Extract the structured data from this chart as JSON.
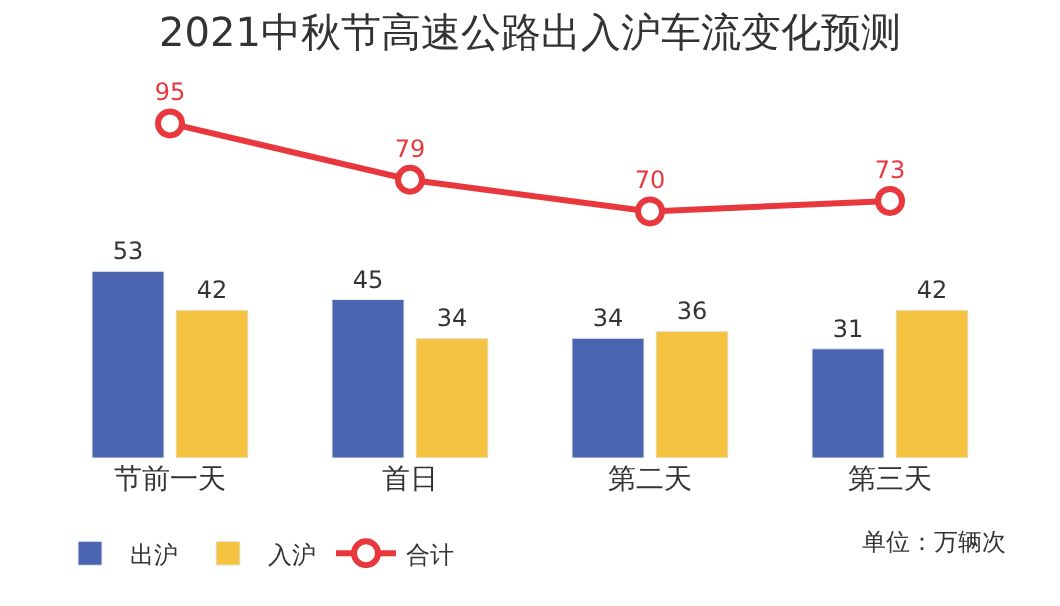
{
  "chart_data": {
    "type": "bar",
    "title": "2021中秋节高速公路出入沪车流变化预测",
    "categories": [
      "节前一天",
      "首日",
      "第二天",
      "第三天"
    ],
    "series": [
      {
        "name": "出沪",
        "color": "#4a64b0",
        "values": [
          53,
          45,
          34,
          31
        ]
      },
      {
        "name": "入沪",
        "color": "#f5c342",
        "values": [
          42,
          34,
          36,
          42
        ]
      },
      {
        "name": "合计",
        "type": "line",
        "color": "#e8383d",
        "values": [
          95,
          79,
          70,
          73
        ],
        "marker": "circle"
      }
    ],
    "tick_labels": "x",
    "legend": "bottom",
    "data_labels": true,
    "annotations": [
      "单位：万辆次"
    ]
  }
}
